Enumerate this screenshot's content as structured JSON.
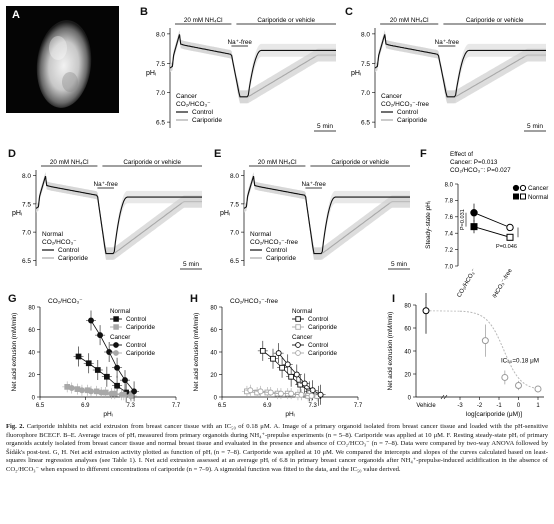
{
  "panels": {
    "A": {
      "label": "A"
    },
    "B": {
      "label": "B",
      "bar_nh4": "20 mM NH₄Cl",
      "bar_drug": "Cariporide or vehicle",
      "na_free": "Na⁺-free",
      "ylabel": "pHᵢ",
      "yticks": [
        "8.0",
        "7.5",
        "7.0",
        "6.5"
      ],
      "scale": "5 min",
      "legend_title": [
        "Cancer",
        "CO₂/HCO₃⁻"
      ],
      "legend": [
        "Control",
        "Cariporide"
      ]
    },
    "C": {
      "label": "C",
      "bar_nh4": "20 mM NH₄Cl",
      "bar_drug": "Cariporide or vehicle",
      "na_free": "Na⁺-free",
      "ylabel": "pHᵢ",
      "yticks": [
        "8.0",
        "7.5",
        "7.0",
        "6.5"
      ],
      "scale": "5 min",
      "legend_title": [
        "Cancer",
        "CO₂/HCO₃⁻-free"
      ],
      "legend": [
        "Control",
        "Cariporide"
      ]
    },
    "D": {
      "label": "D",
      "bar_nh4": "20 mM NH₄Cl",
      "bar_drug": "Cariporide or vehicle",
      "na_free": "Na⁺-free",
      "ylabel": "pHᵢ",
      "yticks": [
        "8.0",
        "7.5",
        "7.0",
        "6.5"
      ],
      "scale": "5 min",
      "legend_title": [
        "Normal",
        "CO₂/HCO₃⁻"
      ],
      "legend": [
        "Control",
        "Cariporide"
      ]
    },
    "E": {
      "label": "E",
      "bar_nh4": "20 mM NH₄Cl",
      "bar_drug": "Cariporide or vehicle",
      "na_free": "Na⁺-free",
      "ylabel": "pHᵢ",
      "yticks": [
        "8.0",
        "7.5",
        "7.0",
        "6.5"
      ],
      "scale": "5 min",
      "legend_title": [
        "Normal",
        "CO₂/HCO₃⁻-free"
      ],
      "legend": [
        "Control",
        "Cariporide"
      ]
    },
    "F": {
      "label": "F",
      "effect_title": "Effect of",
      "effect_cancer": "Cancer: P=0.013",
      "effect_co2": "CO₂/HCO₃⁻: P=0.027",
      "ylabel": "Steady-state pHᵢ",
      "yticks": [
        "8.0",
        "7.8",
        "7.6",
        "7.4",
        "7.2",
        "7.0"
      ],
      "p1": "P=0.031",
      "p2": "P=0.046",
      "legend": [
        "Cancer",
        "Normal"
      ],
      "xcats": [
        "CO₂/HCO₃⁻",
        "CO₂/HCO₃⁻-free"
      ]
    },
    "G": {
      "label": "G",
      "title": "CO₂/HCO₃⁻",
      "ylabel": "Net acid extrusion (mM/min)",
      "yticks": [
        "80",
        "60",
        "40",
        "20",
        "0"
      ],
      "xticks": [
        "6.5",
        "6.9",
        "7.3",
        "7.7"
      ],
      "xlabel": "pHᵢ",
      "legend_g1": "Normal",
      "legend_g2": "Cancer",
      "legend": [
        "Control",
        "Cariporide",
        "Control",
        "Cariporide"
      ]
    },
    "H": {
      "label": "H",
      "title": "CO₂/HCO₃⁻-free",
      "ylabel": "Net acid extrusion (mM/min)",
      "yticks": [
        "80",
        "60",
        "40",
        "20",
        "0"
      ],
      "xticks": [
        "6.5",
        "6.9",
        "7.3",
        "7.7"
      ],
      "xlabel": "pHᵢ",
      "legend_g1": "Normal",
      "legend_g2": "Cancer",
      "legend": [
        "Control",
        "Cariporide",
        "Control",
        "Cariporide"
      ]
    },
    "I": {
      "label": "I",
      "ylabel": "Net acid extrusion (mM/min)",
      "yticks": [
        "80",
        "60",
        "40",
        "20",
        "0"
      ],
      "xticks": [
        "Vehicle",
        "-3",
        "-2",
        "-1",
        "0",
        "1"
      ],
      "xlabel": "log[cariporide (μM)]",
      "ic50": "IC₅₀=0.18 μM"
    }
  },
  "colors": {
    "control": "#111111",
    "cariporide": "#a8a8a8",
    "band": "#d2d2d2"
  },
  "chart_data": [
    {
      "panel": "F",
      "type": "line",
      "categories": [
        "CO₂/HCO₃⁻",
        "CO₂/HCO₃⁻-free"
      ],
      "series": [
        {
          "name": "Cancer",
          "values": [
            7.65,
            7.47
          ],
          "error": [
            0.11,
            0.03
          ]
        },
        {
          "name": "Normal",
          "values": [
            7.48,
            7.35
          ],
          "error": [
            0.08,
            0.04
          ]
        }
      ],
      "ylim": [
        7.0,
        8.0
      ]
    },
    {
      "panel": "G",
      "type": "scatter",
      "xlim": [
        6.5,
        7.7
      ],
      "ylim": [
        0,
        80
      ],
      "series": [
        {
          "name": "Normal Control",
          "x": [
            6.84,
            6.93,
            7.01,
            7.09,
            7.18,
            7.26
          ],
          "y": [
            36,
            30,
            24,
            18,
            10,
            4
          ]
        },
        {
          "name": "Normal Cariporide",
          "x": [
            6.74,
            6.83,
            6.92,
            7.0,
            7.08,
            7.16,
            7.24,
            7.31
          ],
          "y": [
            9,
            7,
            6,
            5,
            4,
            3,
            2,
            1
          ]
        },
        {
          "name": "Cancer Control",
          "x": [
            6.95,
            7.03,
            7.11,
            7.18,
            7.25,
            7.33
          ],
          "y": [
            68,
            55,
            40,
            26,
            15,
            5
          ]
        },
        {
          "name": "Cancer Cariporide",
          "x": [
            6.78,
            6.87,
            6.95,
            7.04,
            7.13,
            7.22,
            7.3
          ],
          "y": [
            8,
            6,
            5,
            4,
            3,
            2,
            1
          ]
        }
      ]
    },
    {
      "panel": "H",
      "type": "scatter",
      "xlim": [
        6.5,
        7.7
      ],
      "ylim": [
        0,
        80
      ],
      "series": [
        {
          "name": "Normal Control",
          "x": [
            6.86,
            6.95,
            7.03,
            7.11,
            7.19,
            7.27,
            7.35
          ],
          "y": [
            41,
            34,
            26,
            18,
            11,
            5,
            1
          ]
        },
        {
          "name": "Normal Cariporide",
          "x": [
            6.72,
            6.81,
            6.9,
            6.99,
            7.08,
            7.17,
            7.26,
            7.34
          ],
          "y": [
            5,
            4,
            4,
            3,
            3,
            2,
            1,
            1
          ]
        },
        {
          "name": "Cancer Control",
          "x": [
            7.0,
            7.08,
            7.16,
            7.23,
            7.3,
            7.37
          ],
          "y": [
            39,
            29,
            20,
            12,
            6,
            2
          ]
        },
        {
          "name": "Cancer Cariporide",
          "x": [
            6.75,
            6.84,
            6.93,
            7.02,
            7.11,
            7.2,
            7.29
          ],
          "y": [
            6,
            5,
            4,
            3,
            3,
            2,
            1
          ]
        }
      ]
    },
    {
      "panel": "I",
      "type": "scatter",
      "ylim": [
        0,
        80
      ],
      "x": [
        "Vehicle",
        -1.7,
        -0.7,
        0,
        1
      ],
      "y": [
        75,
        49,
        17,
        10,
        7
      ]
    }
  ],
  "caption": {
    "title": "Fig. 2.",
    "text": "Cariporide inhibits net acid extrusion from breast cancer tissue with an IC₅₀ of 0.18 μM. A. Image of a primary organoid isolated from breast cancer tissue and loaded with the pH-sensitive fluorophore BCECF. B–E. Average traces of pHᵢ measured from primary organoids during NH₄⁺-prepulse experiments (n = 5–8). Cariporide was applied at 10 μM. F. Resting steady-state pHᵢ of primary organoids acutely isolated from breast cancer tissue and normal breast tissue and evaluated in the presence and absence of CO₂/HCO₃⁻ (n = 7–8). Data were compared by two-way ANOVA followed by Šídák's post-test. G, H. Net acid extrusion activity plotted as function of pHᵢ (n = 7–8). Cariporide was applied at 10 μM. We compared the intercepts and slopes of the curves calculated based on least-squares linear regression analyses (see Table 1). I. Net acid extrusion assessed at an average pHᵢ of 6.8 in primary breast cancer organoids after NH₄⁺-prepulse-induced acidification in the absence of CO₂/HCO₃⁻ when exposed to different concentrations of cariporide (n = 7–9). A sigmoidal function was fitted to the data, and the IC₅₀ value derived."
  }
}
